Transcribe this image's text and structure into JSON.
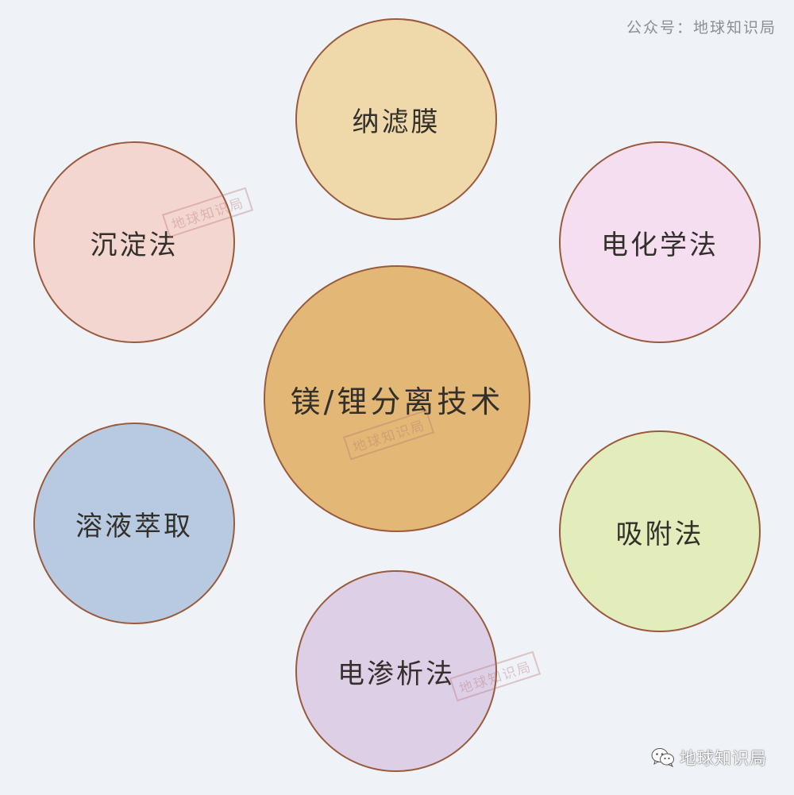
{
  "header": {
    "source_credit": "公众号：地球知识局"
  },
  "diagram": {
    "center": {
      "label": "镁/锂分离技术",
      "color": "#e3b877"
    },
    "methods": [
      {
        "label": "纳滤膜",
        "color": "#efd8aa"
      },
      {
        "label": "电化学法",
        "color": "#f5def0"
      },
      {
        "label": "吸附法",
        "color": "#e3ecbb"
      },
      {
        "label": "电渗析法",
        "color": "#ddd0e6"
      },
      {
        "label": "溶液萃取",
        "color": "#b7cae1"
      },
      {
        "label": "沉淀法",
        "color": "#f4d6d0"
      }
    ]
  },
  "watermark": {
    "stamp_text": "地球知识局"
  },
  "footer": {
    "brand": "地球知识局",
    "icon": "wechat-icon"
  }
}
